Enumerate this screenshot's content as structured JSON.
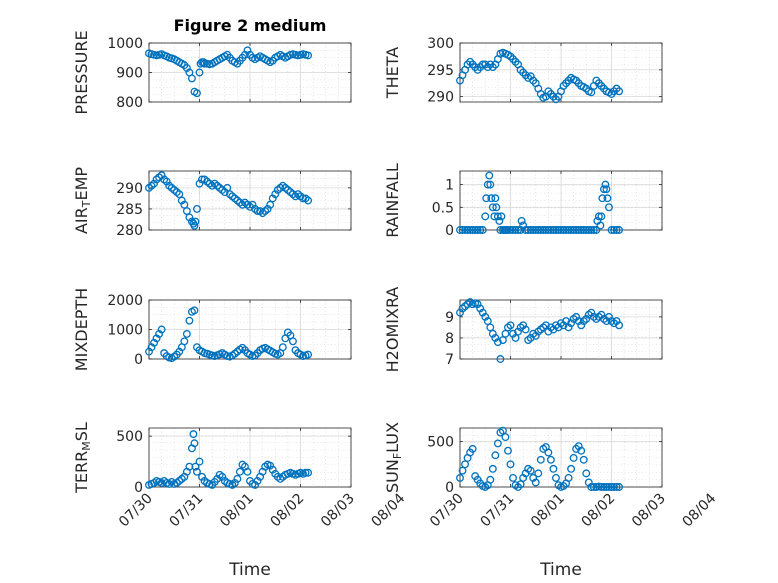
{
  "colors": {
    "marker": "#0072BD",
    "axis": "#262626",
    "grid": "#d9d9d9"
  },
  "figure_title": "Figure 2 medium",
  "x_ticks": [
    "07/30",
    "07/31",
    "08/01",
    "08/02",
    "08/03",
    "08/04"
  ],
  "x_label": "Time",
  "chart_data": [
    {
      "type": "scatter",
      "name_label": "PRESSURE",
      "label_sub": null,
      "ylim": [
        800,
        1000
      ],
      "yticks": [
        800,
        900,
        1000
      ],
      "grid": true,
      "title": "Figure 2 medium",
      "x": [
        0,
        0.05,
        0.1,
        0.15,
        0.2,
        0.25,
        0.3,
        0.35,
        0.4,
        0.45,
        0.5,
        0.55,
        0.6,
        0.65,
        0.7,
        0.75,
        0.8,
        0.85,
        0.9,
        0.95,
        1.0,
        1.02,
        1.05,
        1.08,
        1.1,
        1.15,
        1.2,
        1.25,
        1.3,
        1.35,
        1.4,
        1.45,
        1.5,
        1.55,
        1.6,
        1.65,
        1.7,
        1.75,
        1.8,
        1.85,
        1.9,
        1.95,
        2.0,
        2.05,
        2.1,
        2.15,
        2.2,
        2.25,
        2.3,
        2.35,
        2.4,
        2.45,
        2.5,
        2.55,
        2.6,
        2.65,
        2.7,
        2.75,
        2.8,
        2.85,
        2.9,
        2.95,
        3.0,
        3.05,
        3.1,
        3.15
      ],
      "y": [
        965,
        962,
        960,
        958,
        960,
        962,
        958,
        955,
        950,
        948,
        945,
        940,
        935,
        930,
        925,
        915,
        900,
        880,
        835,
        830,
        900,
        930,
        935,
        935,
        930,
        930,
        928,
        930,
        935,
        940,
        945,
        950,
        955,
        960,
        950,
        940,
        935,
        930,
        940,
        950,
        960,
        975,
        960,
        950,
        945,
        950,
        955,
        950,
        945,
        940,
        935,
        940,
        950,
        955,
        960,
        955,
        950,
        955,
        960,
        962,
        960,
        958,
        960,
        962,
        960,
        958
      ]
    },
    {
      "type": "scatter",
      "name_label": "THETA",
      "label_sub": null,
      "ylim": [
        289,
        300
      ],
      "yticks": [
        290,
        295,
        300
      ],
      "grid": true,
      "x": [
        0,
        0.05,
        0.1,
        0.15,
        0.2,
        0.25,
        0.3,
        0.35,
        0.4,
        0.45,
        0.5,
        0.55,
        0.6,
        0.65,
        0.7,
        0.75,
        0.8,
        0.85,
        0.9,
        0.95,
        1.0,
        1.05,
        1.1,
        1.15,
        1.2,
        1.25,
        1.3,
        1.35,
        1.4,
        1.45,
        1.5,
        1.55,
        1.6,
        1.65,
        1.7,
        1.75,
        1.8,
        1.85,
        1.9,
        1.95,
        2.0,
        2.05,
        2.1,
        2.15,
        2.2,
        2.25,
        2.3,
        2.35,
        2.4,
        2.45,
        2.5,
        2.55,
        2.6,
        2.65,
        2.7,
        2.75,
        2.8,
        2.85,
        2.9,
        2.95,
        3.0,
        3.05,
        3.1,
        3.15
      ],
      "y": [
        293,
        294,
        295,
        296,
        296.5,
        296,
        295.5,
        295,
        295.5,
        296,
        296,
        295.5,
        296,
        295.5,
        296,
        297,
        298,
        298.2,
        298,
        297.8,
        297.5,
        297,
        296.5,
        296,
        295,
        294.5,
        294,
        293.5,
        293.8,
        293,
        292.5,
        291.5,
        290.5,
        289.8,
        290,
        291,
        290.5,
        290,
        289.5,
        290,
        291,
        292,
        292.5,
        293,
        293.5,
        293.2,
        293,
        292.5,
        292,
        291.8,
        291.5,
        291,
        290.8,
        292,
        293,
        292.5,
        292,
        291.5,
        291,
        290.8,
        290.5,
        291,
        291.5,
        291
      ]
    },
    {
      "type": "scatter",
      "name_label": "AIR",
      "label_sub": "T",
      "label_rest": "EMP",
      "ylim": [
        280,
        294
      ],
      "yticks": [
        280,
        285,
        290
      ],
      "grid": true,
      "x": [
        0,
        0.05,
        0.1,
        0.15,
        0.2,
        0.25,
        0.3,
        0.35,
        0.4,
        0.45,
        0.5,
        0.55,
        0.6,
        0.65,
        0.7,
        0.75,
        0.8,
        0.85,
        0.88,
        0.9,
        0.92,
        0.95,
        1.0,
        1.05,
        1.1,
        1.15,
        1.2,
        1.25,
        1.3,
        1.35,
        1.4,
        1.45,
        1.5,
        1.55,
        1.6,
        1.65,
        1.7,
        1.75,
        1.8,
        1.85,
        1.9,
        1.95,
        2.0,
        2.05,
        2.1,
        2.15,
        2.2,
        2.25,
        2.3,
        2.35,
        2.4,
        2.45,
        2.5,
        2.55,
        2.6,
        2.65,
        2.7,
        2.75,
        2.8,
        2.85,
        2.9,
        2.95,
        3.0,
        3.05,
        3.1,
        3.15
      ],
      "y": [
        290,
        290.5,
        291,
        292,
        292.5,
        293,
        292,
        291.5,
        290.5,
        290,
        289.5,
        289,
        288.5,
        287,
        286,
        284.5,
        283,
        282,
        281.5,
        281,
        282,
        285,
        291,
        292,
        292,
        291.5,
        291,
        290.5,
        291,
        290.5,
        290,
        289.5,
        289,
        290,
        288.5,
        288,
        287.5,
        287,
        286.5,
        286,
        286.5,
        286,
        285.5,
        286,
        285,
        284.5,
        284.5,
        284,
        284.5,
        285,
        286,
        287.5,
        288.5,
        289.5,
        290,
        290.5,
        290,
        289.5,
        289,
        288.5,
        288,
        288.5,
        288,
        287.5,
        287.5,
        287
      ]
    },
    {
      "type": "scatter",
      "name_label": "RAINFALL",
      "label_sub": null,
      "ylim": [
        0,
        1.3
      ],
      "yticks": [
        0,
        0.5,
        1
      ],
      "yticklabels": [
        "0",
        "0.5",
        "1"
      ],
      "grid": true,
      "x": [
        0,
        0.05,
        0.1,
        0.15,
        0.2,
        0.25,
        0.3,
        0.35,
        0.4,
        0.45,
        0.5,
        0.52,
        0.55,
        0.58,
        0.6,
        0.62,
        0.65,
        0.68,
        0.7,
        0.72,
        0.75,
        0.78,
        0.8,
        0.82,
        0.85,
        0.88,
        0.9,
        0.92,
        0.95,
        1.0,
        1.05,
        1.1,
        1.15,
        1.2,
        1.22,
        1.25,
        1.3,
        1.35,
        1.4,
        1.45,
        1.5,
        1.55,
        1.6,
        1.65,
        1.7,
        1.75,
        1.8,
        1.85,
        1.9,
        1.95,
        2.0,
        2.05,
        2.1,
        2.15,
        2.2,
        2.25,
        2.3,
        2.35,
        2.4,
        2.45,
        2.5,
        2.55,
        2.6,
        2.65,
        2.7,
        2.72,
        2.75,
        2.78,
        2.8,
        2.82,
        2.85,
        2.88,
        2.9,
        2.92,
        2.95,
        3.0,
        3.05,
        3.1,
        3.15
      ],
      "y": [
        0,
        0,
        0,
        0,
        0,
        0,
        0,
        0,
        0,
        0,
        0.3,
        0.7,
        1.0,
        1.2,
        1.0,
        0.7,
        0.5,
        0.3,
        0.7,
        0.5,
        0.3,
        0.2,
        0,
        0.3,
        0,
        0,
        0,
        0,
        0,
        0,
        0,
        0,
        0,
        0,
        0.2,
        0.1,
        0,
        0,
        0,
        0,
        0,
        0,
        0,
        0,
        0,
        0,
        0,
        0,
        0,
        0,
        0,
        0,
        0,
        0,
        0,
        0,
        0,
        0,
        0,
        0,
        0,
        0,
        0,
        0,
        0,
        0.2,
        0.3,
        0.1,
        0.3,
        0.7,
        0.9,
        1.0,
        0.9,
        0.7,
        0.5,
        0,
        0,
        0,
        0
      ]
    },
    {
      "type": "scatter",
      "name_label": "MIXDEPTH",
      "label_sub": null,
      "ylim": [
        0,
        2000
      ],
      "yticks": [
        0,
        1000,
        2000
      ],
      "grid": true,
      "x": [
        0,
        0.05,
        0.1,
        0.15,
        0.2,
        0.25,
        0.3,
        0.35,
        0.4,
        0.45,
        0.5,
        0.55,
        0.6,
        0.65,
        0.7,
        0.75,
        0.8,
        0.85,
        0.9,
        0.95,
        1.0,
        1.05,
        1.1,
        1.15,
        1.2,
        1.25,
        1.3,
        1.35,
        1.4,
        1.45,
        1.5,
        1.55,
        1.6,
        1.65,
        1.7,
        1.75,
        1.8,
        1.85,
        1.9,
        1.95,
        2.0,
        2.05,
        2.1,
        2.15,
        2.2,
        2.25,
        2.3,
        2.35,
        2.4,
        2.45,
        2.5,
        2.55,
        2.6,
        2.65,
        2.7,
        2.75,
        2.8,
        2.85,
        2.9,
        2.95,
        3.0,
        3.05,
        3.1,
        3.15
      ],
      "y": [
        250,
        400,
        550,
        700,
        850,
        1000,
        200,
        100,
        50,
        30,
        80,
        150,
        250,
        400,
        600,
        850,
        1300,
        1600,
        1650,
        400,
        300,
        250,
        200,
        180,
        150,
        120,
        100,
        130,
        160,
        200,
        150,
        100,
        80,
        120,
        180,
        250,
        320,
        380,
        300,
        200,
        150,
        100,
        120,
        200,
        300,
        350,
        380,
        330,
        280,
        230,
        180,
        150,
        200,
        400,
        700,
        900,
        800,
        600,
        300,
        200,
        150,
        100,
        120,
        150
      ]
    },
    {
      "type": "scatter",
      "name_label": "H2OMIXRA",
      "label_sub": null,
      "ylim": [
        7,
        9.8
      ],
      "yticks": [
        7,
        8,
        9
      ],
      "grid": true,
      "x": [
        0,
        0.05,
        0.1,
        0.15,
        0.2,
        0.25,
        0.3,
        0.35,
        0.4,
        0.45,
        0.5,
        0.55,
        0.6,
        0.65,
        0.7,
        0.75,
        0.8,
        0.85,
        0.9,
        0.95,
        1.0,
        1.05,
        1.1,
        1.15,
        1.2,
        1.25,
        1.3,
        1.35,
        1.4,
        1.45,
        1.5,
        1.55,
        1.6,
        1.65,
        1.7,
        1.75,
        1.8,
        1.85,
        1.9,
        1.95,
        2.0,
        2.05,
        2.1,
        2.15,
        2.2,
        2.25,
        2.3,
        2.35,
        2.4,
        2.45,
        2.5,
        2.55,
        2.6,
        2.65,
        2.7,
        2.75,
        2.8,
        2.85,
        2.9,
        2.95,
        3.0,
        3.05,
        3.1,
        3.15
      ],
      "y": [
        9.2,
        9.4,
        9.5,
        9.6,
        9.7,
        9.6,
        9.65,
        9.6,
        9.4,
        9.2,
        9.0,
        8.8,
        8.5,
        8.2,
        8.0,
        7.8,
        7.0,
        7.9,
        8.2,
        8.5,
        8.6,
        8.2,
        8.0,
        8.3,
        8.5,
        8.6,
        8.4,
        7.9,
        8.0,
        8.2,
        8.1,
        8.3,
        8.4,
        8.5,
        8.6,
        8.3,
        8.5,
        8.4,
        8.6,
        8.5,
        8.7,
        8.6,
        8.8,
        8.5,
        8.7,
        8.9,
        9.0,
        8.8,
        8.6,
        8.8,
        8.9,
        9.1,
        9.2,
        9.0,
        8.9,
        9.0,
        9.1,
        8.9,
        8.8,
        9.0,
        8.8,
        8.7,
        8.8,
        8.6
      ]
    },
    {
      "type": "scatter",
      "name_label": "TERR",
      "label_sub": "M",
      "label_rest": "SL",
      "ylim": [
        0,
        580
      ],
      "yticks": [
        0,
        500
      ],
      "grid": true,
      "x": [
        0,
        0.05,
        0.1,
        0.15,
        0.2,
        0.25,
        0.3,
        0.35,
        0.4,
        0.45,
        0.5,
        0.55,
        0.6,
        0.65,
        0.7,
        0.75,
        0.8,
        0.85,
        0.88,
        0.9,
        0.92,
        0.95,
        1.0,
        1.05,
        1.1,
        1.15,
        1.2,
        1.25,
        1.3,
        1.35,
        1.4,
        1.45,
        1.5,
        1.55,
        1.6,
        1.65,
        1.7,
        1.75,
        1.8,
        1.85,
        1.9,
        1.95,
        2.0,
        2.05,
        2.1,
        2.15,
        2.2,
        2.25,
        2.3,
        2.35,
        2.4,
        2.45,
        2.5,
        2.55,
        2.6,
        2.65,
        2.7,
        2.75,
        2.8,
        2.85,
        2.9,
        2.95,
        3.0,
        3.05,
        3.1,
        3.15
      ],
      "y": [
        20,
        30,
        40,
        60,
        50,
        40,
        60,
        40,
        30,
        50,
        30,
        40,
        60,
        80,
        100,
        150,
        200,
        380,
        520,
        430,
        200,
        150,
        250,
        100,
        60,
        40,
        30,
        20,
        50,
        80,
        120,
        100,
        60,
        40,
        30,
        20,
        40,
        80,
        150,
        220,
        200,
        150,
        60,
        30,
        20,
        60,
        100,
        150,
        200,
        220,
        210,
        170,
        130,
        100,
        80,
        100,
        120,
        130,
        140,
        130,
        120,
        130,
        140,
        130,
        140,
        140
      ]
    },
    {
      "type": "scatter",
      "name_label": "SUN",
      "label_sub": "F",
      "label_rest": "LUX",
      "ylim": [
        0,
        650
      ],
      "yticks": [
        0,
        500
      ],
      "grid": true,
      "x": [
        0,
        0.05,
        0.1,
        0.15,
        0.2,
        0.25,
        0.3,
        0.35,
        0.4,
        0.45,
        0.5,
        0.55,
        0.6,
        0.65,
        0.7,
        0.75,
        0.8,
        0.85,
        0.9,
        0.95,
        1.0,
        1.05,
        1.1,
        1.15,
        1.2,
        1.25,
        1.3,
        1.35,
        1.4,
        1.45,
        1.5,
        1.55,
        1.6,
        1.65,
        1.7,
        1.75,
        1.8,
        1.85,
        1.9,
        1.95,
        2.0,
        2.05,
        2.1,
        2.15,
        2.2,
        2.25,
        2.3,
        2.35,
        2.4,
        2.45,
        2.5,
        2.55,
        2.6,
        2.65,
        2.7,
        2.75,
        2.8,
        2.85,
        2.9,
        2.95,
        3.0,
        3.05,
        3.1,
        3.15
      ],
      "y": [
        100,
        180,
        250,
        320,
        380,
        420,
        120,
        80,
        40,
        10,
        0,
        20,
        80,
        200,
        350,
        480,
        600,
        620,
        550,
        400,
        250,
        100,
        20,
        0,
        30,
        100,
        150,
        200,
        180,
        100,
        50,
        150,
        300,
        420,
        440,
        380,
        300,
        200,
        100,
        20,
        0,
        10,
        40,
        100,
        200,
        320,
        420,
        450,
        400,
        300,
        150,
        50,
        0,
        0,
        0,
        5,
        0,
        0,
        0,
        0,
        0,
        0,
        0,
        0
      ]
    }
  ]
}
